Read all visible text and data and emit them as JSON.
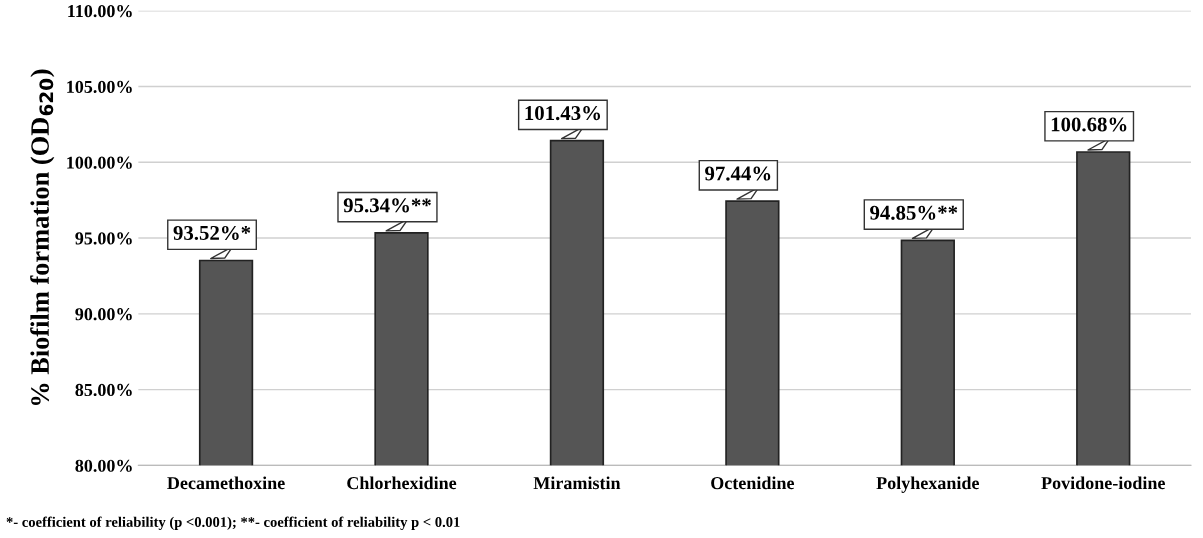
{
  "chart_data": {
    "type": "bar",
    "ylabel": "% Biofilm formation (OD$_{620}$)",
    "categories": [
      "Decamethoxine",
      "Chlorhexidine",
      "Miramistin",
      "Octenidine",
      "Polyhexanide",
      "Povidone-iodine"
    ],
    "values": [
      93.52,
      95.34,
      101.43,
      97.44,
      94.85,
      100.68
    ],
    "value_labels": [
      "93.52%*",
      "95.34%**",
      "101.43%",
      "97.44%",
      "94.85%**",
      "100.68%"
    ],
    "color": "#555555",
    "ylim": [
      80,
      110
    ],
    "yticks": [
      {
        "value": 80,
        "label": "80.00%"
      },
      {
        "value": 85,
        "label": "85.00%"
      },
      {
        "value": 90,
        "label": "90.00%"
      },
      {
        "value": 95,
        "label": "95.00%"
      },
      {
        "value": 100,
        "label": "100.00%"
      },
      {
        "value": 105,
        "label": "105.00%"
      },
      {
        "value": 110,
        "label": "110.00%"
      }
    ],
    "grid": "y",
    "annotations": [
      "*- coefficient of reliability (p <0.001); **- coefficient of reliability p < 0.01"
    ]
  }
}
